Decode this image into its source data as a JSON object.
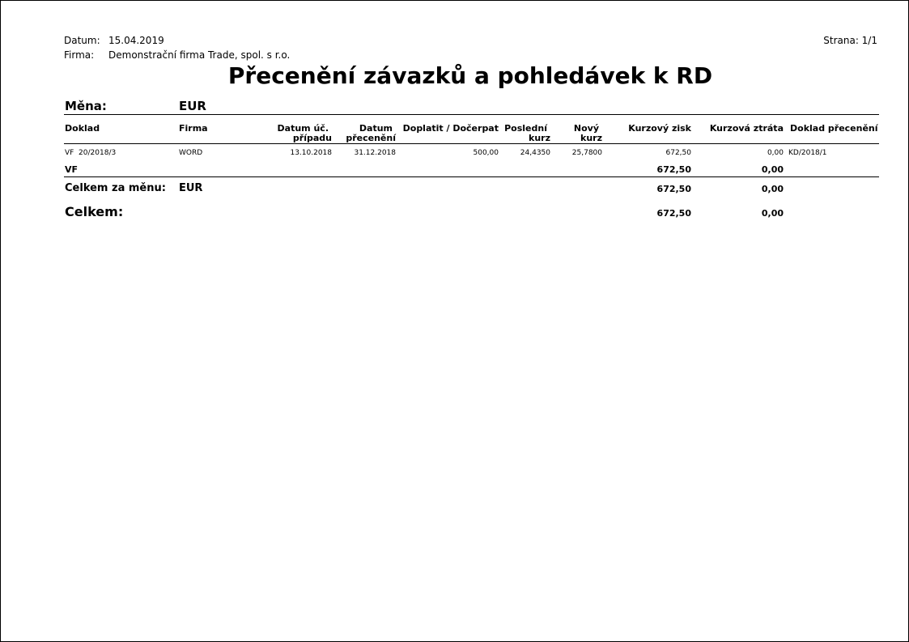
{
  "header": {
    "datum_label": "Datum:",
    "datum": "15.04.2019",
    "firma_label": "Firma:",
    "firma": "Demonstrační firma Trade, spol. s r.o.",
    "strana": "Strana: 1/1"
  },
  "title": "Přecenění závazků a pohledávek k RD",
  "mena_label": "Měna:",
  "mena": "EUR",
  "columns": {
    "doklad": "Doklad",
    "firma": "Firma",
    "datum_uc_1": "Datum úč.",
    "datum_uc_2": "případu",
    "datum_pr_1": "Datum",
    "datum_pr_2": "přecenění",
    "doplatit": "Doplatit / Dočerpat",
    "posl_1": "Poslední",
    "posl_2": "kurz",
    "novy_1": "Nový",
    "novy_2": "kurz",
    "zisk": "Kurzový zisk",
    "ztrata": "Kurzová ztráta",
    "doklad_pr": "Doklad přecenění"
  },
  "rows": [
    {
      "doklad": "VF  20/2018/3",
      "firma": "WORD",
      "datum_uc": "13.10.2018",
      "datum_pr": "31.12.2018",
      "doplatit": "500,00",
      "posl_kurz": "24,4350",
      "novy_kurz": "25,7800",
      "zisk": "672,50",
      "ztrata": "0,00",
      "doklad_pr": "KD/2018/1"
    }
  ],
  "group": {
    "label": "VF",
    "zisk": "672,50",
    "ztrata": "0,00"
  },
  "currency_total": {
    "label": "Celkem za měnu:",
    "mena": "EUR",
    "zisk": "672,50",
    "ztrata": "0,00"
  },
  "total": {
    "label": "Celkem:",
    "zisk": "672,50",
    "ztrata": "0,00"
  }
}
